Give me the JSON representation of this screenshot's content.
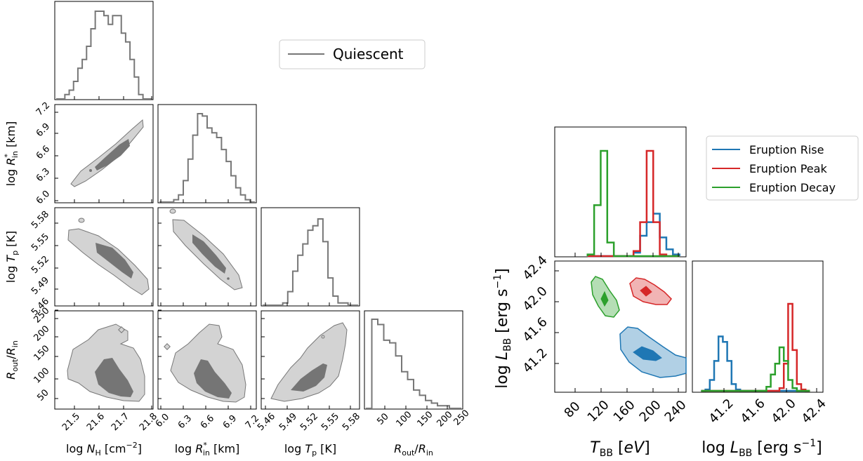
{
  "colors": {
    "quiescent": "#777777",
    "contour_outer": "#d3d3d3",
    "contour_inner": "#757575",
    "rise": "#1f77b4",
    "peak": "#d62728",
    "decay": "#2ca02c"
  },
  "chart_data": [
    {
      "type": "corner",
      "panel": "left",
      "legend": [
        "Quiescent"
      ],
      "legend_position": "top-right",
      "parameters": [
        {
          "xlabel": "log N_H [cm^-2]",
          "range": [
            21.4,
            21.8
          ],
          "ticks": [
            21.5,
            21.6,
            21.7,
            21.8
          ],
          "ylabel": "",
          "histogram": [
            0,
            0,
            1,
            2,
            4,
            7,
            9,
            12,
            16,
            20,
            20,
            19,
            17,
            19,
            19,
            15,
            13,
            9,
            5,
            1,
            0,
            0
          ]
        },
        {
          "xlabel": "log R*_in [km]",
          "ylabel": "log R*_in [km]",
          "range": [
            5.95,
            7.2
          ],
          "ticks": [
            6.0,
            6.3,
            6.6,
            6.9,
            7.2
          ],
          "histogram": [
            0,
            0,
            0,
            1,
            3,
            9,
            18,
            28,
            37,
            36,
            31,
            29,
            27,
            22,
            17,
            11,
            6,
            3,
            1,
            0
          ]
        },
        {
          "xlabel": "log T_p [K]",
          "ylabel": "log T_p [K]",
          "range": [
            5.45,
            5.59
          ],
          "ticks": [
            5.46,
            5.49,
            5.52,
            5.55,
            5.58
          ],
          "histogram": [
            0,
            0,
            0,
            0,
            1,
            6,
            15,
            22,
            27,
            33,
            35,
            38,
            28,
            12,
            4,
            1,
            1,
            0,
            0
          ]
        },
        {
          "xlabel": "R_out/R_in",
          "ylabel": "R_out/R_in",
          "range": [
            20,
            250
          ],
          "ticks": [
            50,
            100,
            150,
            200,
            250
          ],
          "histogram": [
            0,
            34,
            32,
            26,
            25,
            20,
            14,
            11,
            7,
            5,
            3,
            2,
            1,
            1,
            0,
            0
          ]
        }
      ]
    },
    {
      "type": "corner",
      "panel": "right",
      "legend": [
        "Eruption Rise",
        "Eruption Peak",
        "Eruption Decay"
      ],
      "legend_position": "top-right",
      "xlabel": "T_BB [eV]",
      "ylabel": "log L_BB [erg s^-1]",
      "T_BB_range": [
        50,
        250
      ],
      "T_BB_ticks": [
        80,
        120,
        160,
        200,
        240
      ],
      "logL_range": [
        40.9,
        42.4
      ],
      "logL_ticks": [
        41.2,
        41.6,
        42.0,
        42.4
      ],
      "T_BB_hist": {
        "bins": [
          100,
          110,
          120,
          130,
          140,
          150,
          160,
          170,
          180,
          190,
          200,
          210,
          220,
          230,
          240
        ],
        "rise": [
          0,
          0,
          0,
          0,
          0,
          0,
          0,
          2,
          12,
          20,
          25,
          11,
          4,
          1
        ],
        "peak": [
          0,
          0,
          0,
          0,
          0,
          0,
          0,
          3,
          20,
          62,
          20,
          1,
          0,
          0
        ],
        "decay": [
          1,
          30,
          62,
          8,
          0,
          0,
          0,
          0,
          0,
          0,
          0,
          0,
          0,
          0
        ]
      },
      "logL_hist": {
        "bins": [
          41.0,
          41.05,
          41.1,
          41.15,
          41.2,
          41.25,
          41.3,
          41.35,
          41.4,
          41.45,
          41.5,
          41.55,
          41.6,
          41.65,
          41.7,
          41.75,
          41.8,
          41.85,
          41.9,
          41.95,
          42.0,
          42.05,
          42.1,
          42.15,
          42.2,
          42.25
        ],
        "rise": [
          0,
          1,
          8,
          22,
          40,
          36,
          22,
          5,
          1,
          0,
          0,
          0,
          0,
          0,
          0,
          0,
          0,
          0,
          0,
          0,
          0,
          0,
          0,
          0,
          0
        ],
        "peak": [
          0,
          0,
          0,
          0,
          0,
          0,
          0,
          0,
          0,
          0,
          0,
          0,
          0,
          0,
          0,
          0,
          0,
          0,
          2,
          20,
          64,
          30,
          5,
          1,
          0
        ],
        "decay": [
          0,
          0,
          0,
          0,
          0,
          0,
          0,
          0,
          0,
          0,
          0,
          0,
          0,
          0,
          0,
          3,
          12,
          20,
          32,
          22,
          8,
          2,
          0,
          0,
          0
        ]
      },
      "contours": {
        "rise": {
          "center": [
            188,
            41.27
          ],
          "span": [
            [
              160,
              245
            ],
            [
              41.1,
              41.48
            ]
          ]
        },
        "peak": {
          "center": [
            190,
            42.05
          ],
          "span": [
            [
              170,
              212
            ],
            [
              41.95,
              42.14
            ]
          ]
        },
        "decay": {
          "center": [
            122,
            41.96
          ],
          "span": [
            [
              110,
              138
            ],
            [
              41.83,
              42.1
            ]
          ]
        }
      }
    }
  ]
}
